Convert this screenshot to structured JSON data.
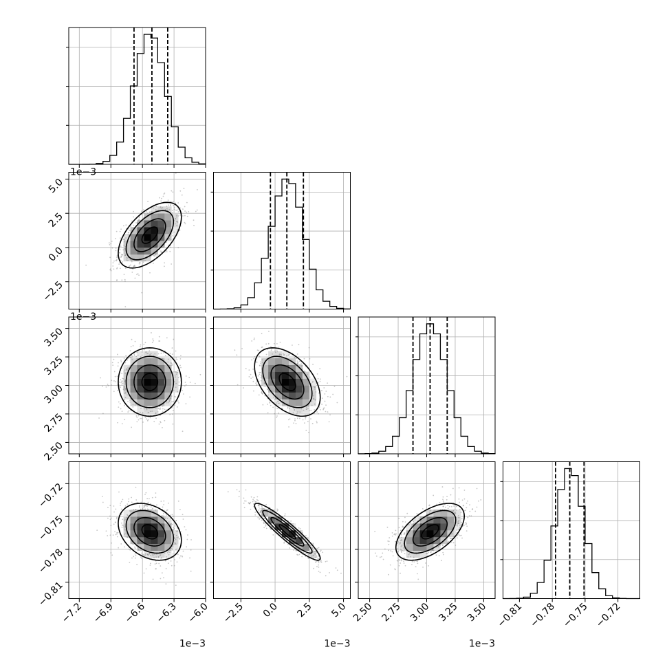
{
  "chart_data": {
    "type": "corner",
    "grid": true,
    "quantiles": [
      0.16,
      0.5,
      0.84
    ],
    "parameters": [
      {
        "range": [
          -7.3,
          -6.0
        ],
        "ticks": [
          -7.2,
          -6.9,
          -6.6,
          -6.3,
          -6.0
        ],
        "tick_labels": [
          "−7.2",
          "−6.9",
          "−6.6",
          "−6.3",
          "−6.0"
        ],
        "offset_label": "1e−3",
        "mean": -6.53,
        "std": 0.15,
        "quantile_values": [
          -6.68,
          -6.51,
          -6.36
        ]
      },
      {
        "range": [
          -4.5,
          5.5
        ],
        "ticks": [
          -2.5,
          0.0,
          2.5,
          5.0
        ],
        "tick_labels": [
          "−2.5",
          "0.0",
          "2.5",
          "5.0"
        ],
        "offset_label": "1e−3",
        "mean": 0.9,
        "std": 1.2,
        "quantile_values": [
          -0.34,
          0.86,
          2.07
        ]
      },
      {
        "range": [
          2.4,
          3.6
        ],
        "ticks": [
          2.5,
          2.75,
          3.0,
          3.25,
          3.5
        ],
        "tick_labels": [
          "2.50",
          "2.75",
          "3.00",
          "3.25",
          "3.50"
        ],
        "offset_label": "1e−3",
        "mean": 3.03,
        "std": 0.15,
        "quantile_values": [
          2.88,
          3.03,
          3.18
        ]
      },
      {
        "range": [
          -0.825,
          -0.7
        ],
        "ticks": [
          -0.81,
          -0.78,
          -0.75,
          -0.72
        ],
        "tick_labels": [
          "−0.81",
          "−0.78",
          "−0.75",
          "−0.72"
        ],
        "offset_label": "",
        "mean": -0.764,
        "std": 0.013,
        "quantile_values": [
          -0.777,
          -0.764,
          -0.751
        ]
      }
    ],
    "correlations": [
      {
        "i": 1,
        "j": 0,
        "rho": 0.55
      },
      {
        "i": 2,
        "j": 0,
        "rho": 0.0
      },
      {
        "i": 2,
        "j": 1,
        "rho": -0.45
      },
      {
        "i": 3,
        "j": 0,
        "rho": -0.3
      },
      {
        "i": 3,
        "j": 1,
        "rho": -0.93
      },
      {
        "i": 3,
        "j": 2,
        "rho": 0.55
      }
    ]
  }
}
